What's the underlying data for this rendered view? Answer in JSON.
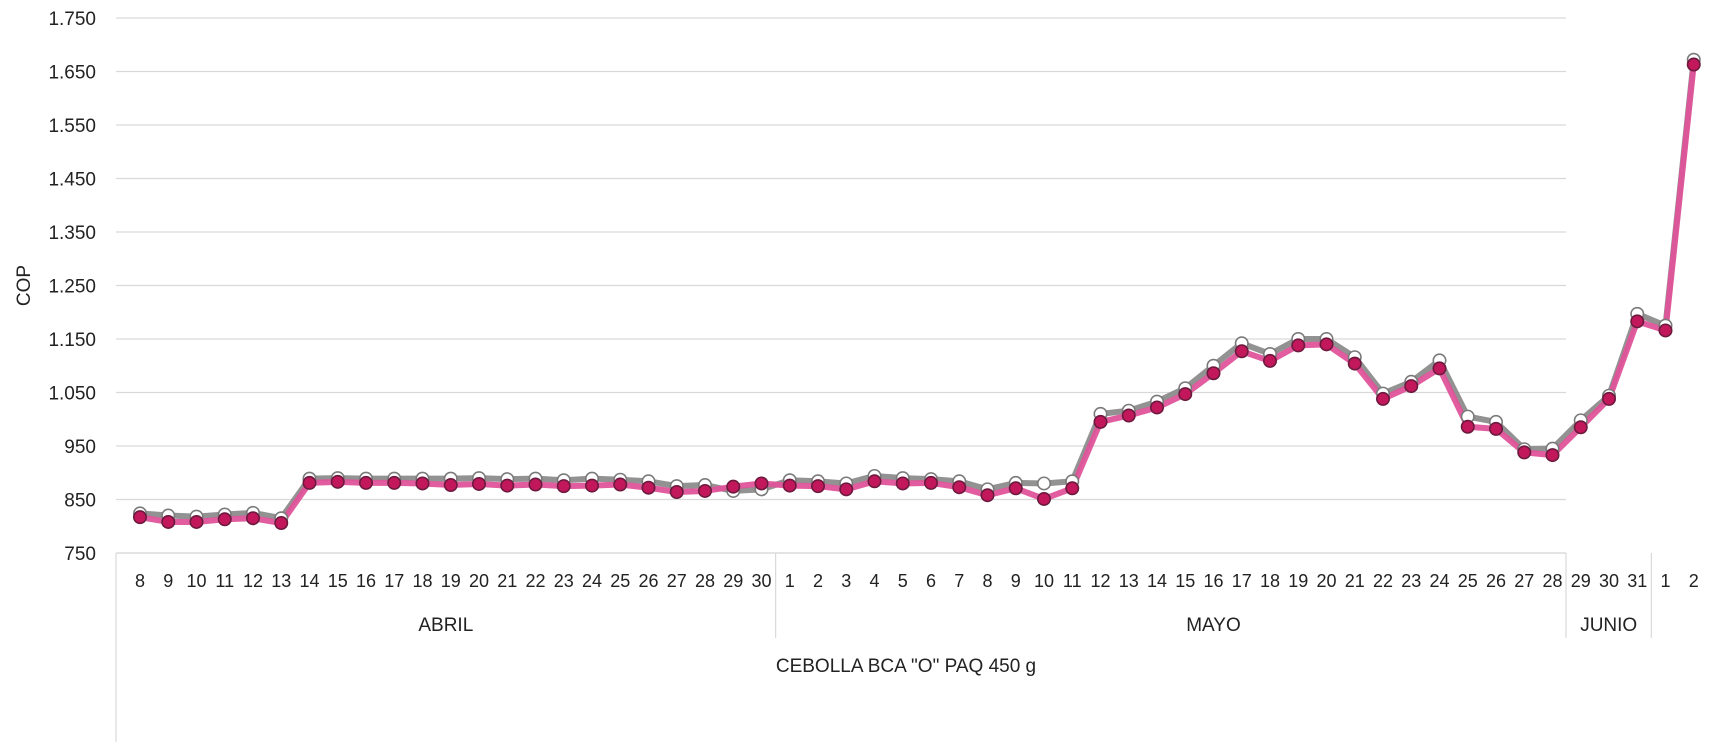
{
  "chart_data": {
    "type": "line",
    "title": "",
    "ylabel": "COP",
    "xlabel": "",
    "ylim": [
      750,
      1750
    ],
    "yticks": [
      750,
      850,
      950,
      1050,
      1150,
      1250,
      1350,
      1450,
      1550,
      1650,
      1750
    ],
    "ytick_labels": [
      "750",
      "850",
      "950",
      "1.050",
      "1.150",
      "1.250",
      "1.350",
      "1.450",
      "1.550",
      "1.650",
      "1.750"
    ],
    "grid": true,
    "legend": "none",
    "category_group": "CEBOLLA BCA \"O\" PAQ 450 g",
    "months": [
      {
        "name": "ABRIL",
        "days": [
          "8",
          "9",
          "10",
          "11",
          "12",
          "13",
          "14",
          "15",
          "16",
          "17",
          "18",
          "19",
          "20",
          "21",
          "22",
          "23",
          "24",
          "25",
          "26",
          "27",
          "28",
          "29",
          "30"
        ]
      },
      {
        "name": "MAYO",
        "days": [
          "1",
          "2",
          "3",
          "4",
          "5",
          "6",
          "7",
          "8",
          "9",
          "10",
          "11",
          "12",
          "13",
          "14",
          "15",
          "16",
          "17",
          "18",
          "19",
          "20",
          "21",
          "22",
          "23",
          "24",
          "25",
          "26",
          "27",
          "28",
          "29",
          "30",
          "31"
        ]
      },
      {
        "name": "JUNIO",
        "days": [
          "1",
          "2"
        ]
      }
    ],
    "highlight_range": {
      "from": "MAYO 29",
      "to": "JUNIO 2",
      "color": "#f3dcdf"
    },
    "series": [
      {
        "color": "#e0549a",
        "marker_fill": "#c2185b",
        "values": [
          817,
          808,
          808,
          813,
          815,
          806,
          881,
          883,
          881,
          881,
          880,
          877,
          879,
          876,
          878,
          875,
          876,
          878,
          872,
          864,
          866,
          874,
          880,
          876,
          875,
          869,
          884,
          880,
          881,
          873,
          858,
          871,
          851,
          871,
          995,
          1007,
          1022,
          1047,
          1086,
          1127,
          1109,
          1138,
          1140,
          1104,
          1038,
          1062,
          1095,
          986,
          982,
          938,
          933,
          985,
          1038,
          1183,
          1166,
          1663
        ]
      },
      {
        "color": "#8c8c8c",
        "marker_fill": "#ffffff",
        "values": [
          824,
          820,
          818,
          822,
          825,
          815,
          889,
          890,
          889,
          889,
          889,
          889,
          890,
          888,
          889,
          886,
          889,
          887,
          884,
          875,
          877,
          866,
          869,
          886,
          884,
          880,
          894,
          890,
          888,
          884,
          869,
          881,
          880,
          884,
          1010,
          1016,
          1033,
          1058,
          1100,
          1142,
          1122,
          1150,
          1150,
          1116,
          1048,
          1070,
          1110,
          1005,
          995,
          944,
          945,
          998,
          1044,
          1197,
          1175,
          1672
        ]
      }
    ]
  }
}
